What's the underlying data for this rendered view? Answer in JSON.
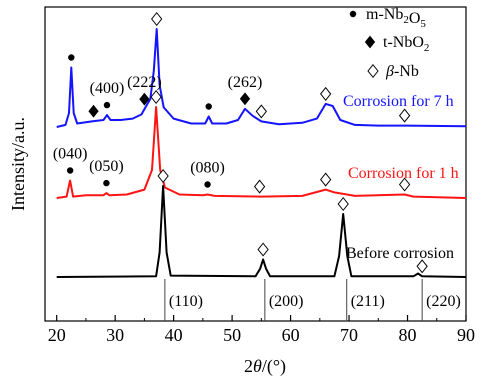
{
  "chart_data": {
    "type": "line",
    "x_label": "2θ/(°)",
    "y_label": "Intensity/a.u.",
    "xlim": [
      18,
      90
    ],
    "x_ticks": [
      "20",
      "30",
      "40",
      "50",
      "60",
      "70",
      "80",
      "90"
    ],
    "y_ticks": "none",
    "grid": false,
    "legend_position": "top-right",
    "legend": [
      {
        "marker": "circle",
        "label": "m-Nb2O5"
      },
      {
        "marker": "diamond-filled",
        "label": "t-NbO2"
      },
      {
        "marker": "diamond-open",
        "label": "β-Nb"
      }
    ],
    "series": [
      {
        "name": "Corrosion for 7 h",
        "color": "#1414ff",
        "offset": 2.0,
        "points": [
          [
            20,
            0
          ],
          [
            21.5,
            0.03
          ],
          [
            22.1,
            0.2
          ],
          [
            22.5,
            0.85
          ],
          [
            22.9,
            0.2
          ],
          [
            23.5,
            0.05
          ],
          [
            26,
            0.08
          ],
          [
            28,
            0.1
          ],
          [
            28.6,
            0.17
          ],
          [
            29.2,
            0.1
          ],
          [
            31,
            0.1
          ],
          [
            33,
            0.12
          ],
          [
            34.5,
            0.18
          ],
          [
            35.3,
            0.3
          ],
          [
            36,
            0.4
          ],
          [
            36.6,
            0.8
          ],
          [
            37.1,
            1.4
          ],
          [
            37.6,
            0.6
          ],
          [
            38.3,
            0.28
          ],
          [
            40,
            0.12
          ],
          [
            43,
            0.05
          ],
          [
            45.4,
            0.05
          ],
          [
            46,
            0.15
          ],
          [
            46.6,
            0.05
          ],
          [
            49,
            0.05
          ],
          [
            51,
            0.1
          ],
          [
            52.2,
            0.26
          ],
          [
            53.5,
            0.16
          ],
          [
            55,
            0.08
          ],
          [
            58,
            0.04
          ],
          [
            62,
            0.06
          ],
          [
            64.5,
            0.12
          ],
          [
            66,
            0.33
          ],
          [
            67.2,
            0.3
          ],
          [
            68.5,
            0.1
          ],
          [
            71,
            0.03
          ],
          [
            75,
            0.02
          ],
          [
            80,
            0.02
          ],
          [
            90,
            0.01
          ]
        ]
      },
      {
        "name": "Corrosion for 1 h",
        "color": "#ff1414",
        "offset": 1.0,
        "points": [
          [
            20,
            0
          ],
          [
            21.7,
            0.02
          ],
          [
            22.3,
            0.25
          ],
          [
            22.8,
            0.02
          ],
          [
            25,
            0.04
          ],
          [
            28,
            0.04
          ],
          [
            28.5,
            0.07
          ],
          [
            29,
            0.04
          ],
          [
            32,
            0.05
          ],
          [
            35,
            0.12
          ],
          [
            36.3,
            0.4
          ],
          [
            37,
            1.3
          ],
          [
            37.7,
            0.4
          ],
          [
            38.5,
            0.15
          ],
          [
            41,
            0.05
          ],
          [
            45,
            0.04
          ],
          [
            45.8,
            0.05
          ],
          [
            47,
            0.03
          ],
          [
            55,
            0.02
          ],
          [
            62,
            0.03
          ],
          [
            66,
            0.12
          ],
          [
            67.5,
            0.08
          ],
          [
            71,
            0.03
          ],
          [
            79.5,
            0.05
          ],
          [
            81,
            0.02
          ],
          [
            90,
            0
          ]
        ]
      },
      {
        "name": "Before corrosion",
        "color": "#000000",
        "offset": 0.0,
        "points": [
          [
            20,
            0
          ],
          [
            37,
            0.01
          ],
          [
            37.6,
            0.35
          ],
          [
            38.2,
            1.3
          ],
          [
            38.8,
            0.35
          ],
          [
            39.5,
            0.02
          ],
          [
            54,
            0.01
          ],
          [
            54.8,
            0.12
          ],
          [
            55.3,
            0.25
          ],
          [
            55.8,
            0.12
          ],
          [
            56.5,
            0.01
          ],
          [
            67.5,
            0.01
          ],
          [
            68.3,
            0.3
          ],
          [
            69,
            0.9
          ],
          [
            69.7,
            0.3
          ],
          [
            70.4,
            0.01
          ],
          [
            81,
            0.01
          ],
          [
            81.8,
            0.05
          ],
          [
            82.5,
            0.01
          ],
          [
            90,
            0
          ]
        ]
      }
    ],
    "reference_lines": [
      {
        "x": 38.5,
        "label": "(110)"
      },
      {
        "x": 55.6,
        "label": "(200)"
      },
      {
        "x": 69.6,
        "label": "(211)"
      },
      {
        "x": 82.5,
        "label": "(220)"
      }
    ],
    "annotations": [
      {
        "text": "(400)",
        "series": "Corrosion for 7 h",
        "x": 28.6
      },
      {
        "text": "(222)",
        "series": "Corrosion for 7 h",
        "x": 35.0
      },
      {
        "text": "(262)",
        "series": "Corrosion for 7 h",
        "x": 52.2
      },
      {
        "text": "(040)",
        "series": "Corrosion for 1 h",
        "x": 22.3
      },
      {
        "text": "(050)",
        "series": "Corrosion for 1 h",
        "x": 28.5
      },
      {
        "text": "(080)",
        "series": "Corrosion for 1 h",
        "x": 45.8
      }
    ],
    "markers": [
      {
        "series": "Corrosion for 7 h",
        "x": 22.5,
        "type": "circle"
      },
      {
        "series": "Corrosion for 7 h",
        "x": 28.6,
        "type": "circle"
      },
      {
        "series": "Corrosion for 7 h",
        "x": 46.0,
        "type": "circle"
      },
      {
        "series": "Corrosion for 7 h",
        "x": 26.3,
        "type": "diamond-filled"
      },
      {
        "series": "Corrosion for 7 h",
        "x": 35.0,
        "type": "diamond-filled"
      },
      {
        "series": "Corrosion for 7 h",
        "x": 52.2,
        "type": "diamond-filled"
      },
      {
        "series": "Corrosion for 7 h",
        "x": 37.1,
        "type": "diamond-open"
      },
      {
        "series": "Corrosion for 7 h",
        "x": 55.0,
        "type": "diamond-open"
      },
      {
        "series": "Corrosion for 7 h",
        "x": 66.0,
        "type": "diamond-open"
      },
      {
        "series": "Corrosion for 7 h",
        "x": 79.5,
        "type": "diamond-open"
      },
      {
        "series": "Corrosion for 1 h",
        "x": 22.3,
        "type": "circle"
      },
      {
        "series": "Corrosion for 1 h",
        "x": 28.5,
        "type": "circle"
      },
      {
        "series": "Corrosion for 1 h",
        "x": 45.8,
        "type": "circle"
      },
      {
        "series": "Corrosion for 1 h",
        "x": 37.0,
        "type": "diamond-open"
      },
      {
        "series": "Corrosion for 1 h",
        "x": 54.7,
        "type": "diamond-open"
      },
      {
        "series": "Corrosion for 1 h",
        "x": 66.0,
        "type": "diamond-open"
      },
      {
        "series": "Corrosion for 1 h",
        "x": 79.5,
        "type": "diamond-open"
      },
      {
        "series": "Before corrosion",
        "x": 38.2,
        "type": "diamond-open"
      },
      {
        "series": "Before corrosion",
        "x": 55.3,
        "type": "diamond-open"
      },
      {
        "series": "Before corrosion",
        "x": 69.0,
        "type": "diamond-open"
      },
      {
        "series": "Before corrosion",
        "x": 82.5,
        "type": "diamond-open"
      }
    ]
  }
}
